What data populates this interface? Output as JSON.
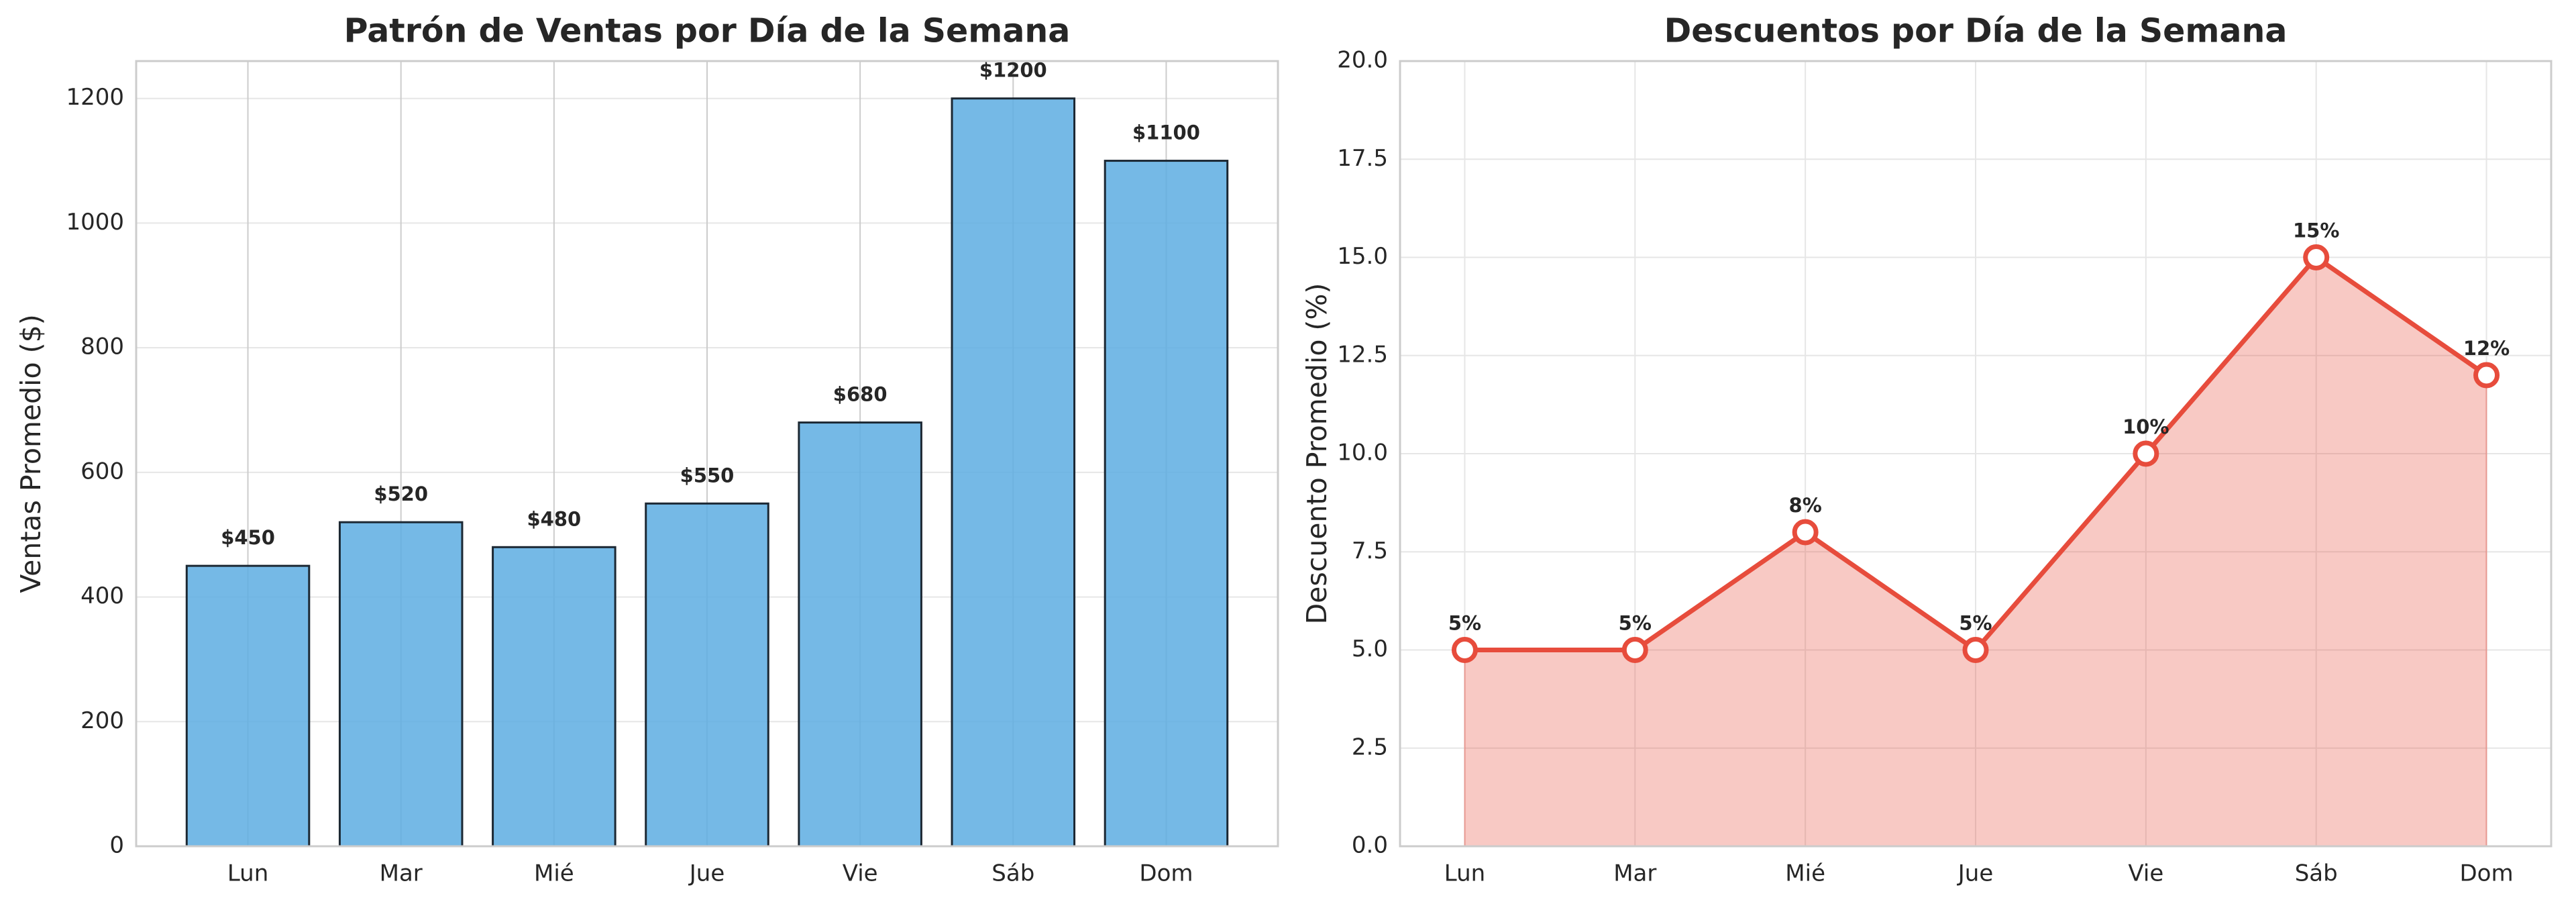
{
  "chart_data": [
    {
      "type": "bar",
      "title": "Patrón de Ventas por Día de la Semana",
      "y_label": "Ventas Promedio ($)",
      "categories": [
        "Lun",
        "Mar",
        "Mié",
        "Jue",
        "Vie",
        "Sáb",
        "Dom"
      ],
      "values": [
        450,
        520,
        480,
        550,
        680,
        1200,
        1100
      ],
      "value_labels": [
        "$450",
        "$520",
        "$480",
        "$550",
        "$680",
        "$1200",
        "$1100"
      ],
      "color": "#5dade2",
      "edgecolor": "#1c2833",
      "ylim": [
        0,
        1260
      ],
      "yticks": [
        0,
        200,
        400,
        600,
        800,
        1000,
        1200
      ],
      "grid": true
    },
    {
      "type": "area",
      "title": "Descuentos por Día de la Semana",
      "y_label": "Descuento Promedio (%)",
      "categories": [
        "Lun",
        "Mar",
        "Mié",
        "Jue",
        "Vie",
        "Sáb",
        "Dom"
      ],
      "values": [
        5,
        5,
        8,
        5,
        10,
        15,
        12
      ],
      "value_labels": [
        "5%",
        "5%",
        "8%",
        "5%",
        "10%",
        "15%",
        "12%"
      ],
      "color": "#e74c3c",
      "ylim": [
        0,
        20
      ],
      "yticks": [
        {
          "value": 0,
          "label": "0.0"
        },
        {
          "value": 2.5,
          "label": "2.5"
        },
        {
          "value": 5,
          "label": "5.0"
        },
        {
          "value": 7.5,
          "label": "7.5"
        },
        {
          "value": 10,
          "label": "10.0"
        },
        {
          "value": 12.5,
          "label": "12.5"
        },
        {
          "value": 15,
          "label": "15.0"
        },
        {
          "value": 17.5,
          "label": "17.5"
        },
        {
          "value": 20,
          "label": "20.0"
        }
      ],
      "grid": true
    }
  ]
}
